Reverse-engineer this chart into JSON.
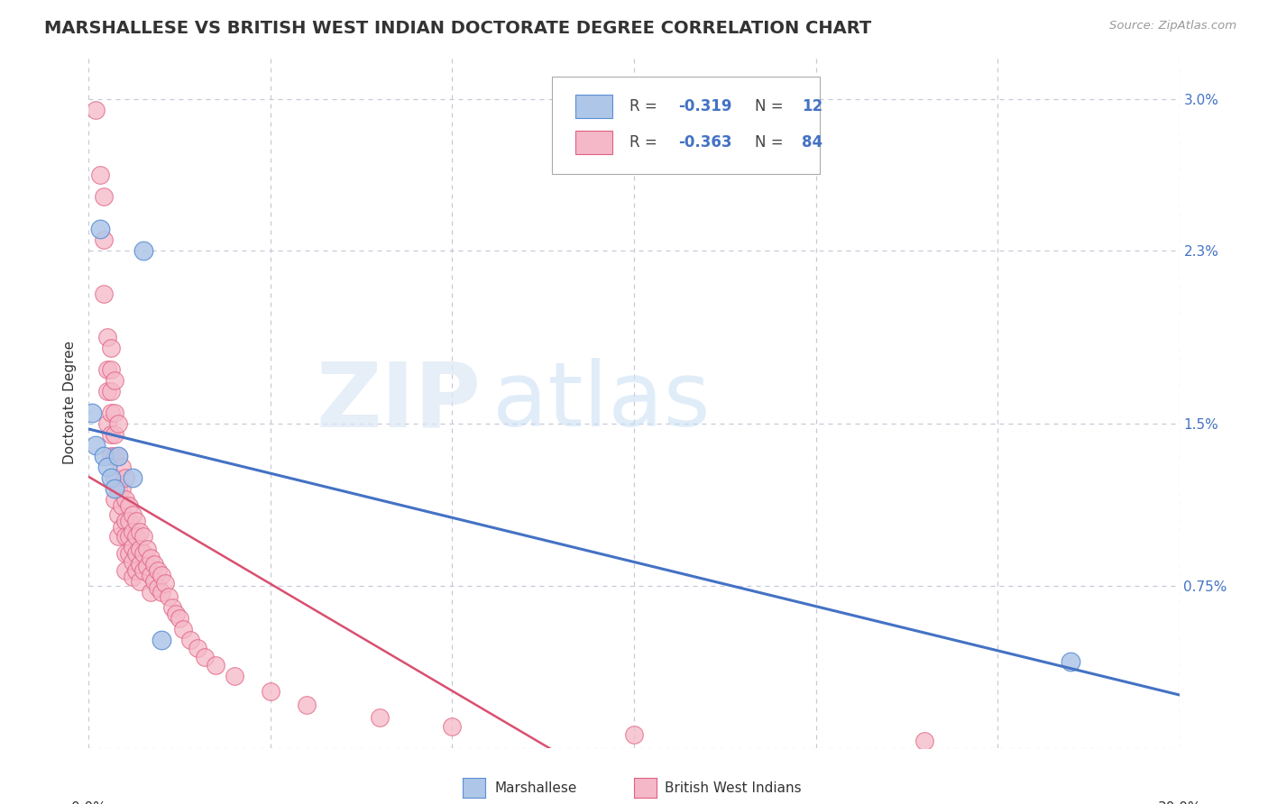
{
  "title": "MARSHALLESE VS BRITISH WEST INDIAN DOCTORATE DEGREE CORRELATION CHART",
  "source": "Source: ZipAtlas.com",
  "ylabel": "Doctorate Degree",
  "blue_color": "#aec6e8",
  "pink_color": "#f5b8c8",
  "blue_edge_color": "#5b8fd4",
  "pink_edge_color": "#e06080",
  "blue_line_color": "#4472c4",
  "pink_line_color": "#d94f70",
  "background_color": "#ffffff",
  "grid_color": "#c8c8d8",
  "watermark_zip": "ZIP",
  "watermark_atlas": "atlas",
  "title_fontsize": 14,
  "axis_label_fontsize": 11,
  "tick_fontsize": 11,
  "legend_fontsize": 12,
  "xlim": [
    0.0,
    0.3
  ],
  "ylim": [
    0.0,
    0.032
  ],
  "ytick_vals": [
    0.0,
    0.0075,
    0.015,
    0.023,
    0.03
  ],
  "ytick_labels": [
    "",
    "0.75%",
    "1.5%",
    "2.3%",
    "3.0%"
  ],
  "xtick_vals": [
    0.0,
    0.05,
    0.1,
    0.15,
    0.2,
    0.25,
    0.3
  ],
  "marshallese_x": [
    0.001,
    0.002,
    0.003,
    0.004,
    0.005,
    0.006,
    0.007,
    0.008,
    0.012,
    0.015,
    0.02,
    0.27
  ],
  "marshallese_y": [
    0.0155,
    0.014,
    0.024,
    0.0135,
    0.013,
    0.0125,
    0.012,
    0.0135,
    0.0125,
    0.023,
    0.005,
    0.004
  ],
  "bwi_x": [
    0.002,
    0.003,
    0.004,
    0.004,
    0.004,
    0.005,
    0.005,
    0.005,
    0.005,
    0.006,
    0.006,
    0.006,
    0.006,
    0.006,
    0.006,
    0.007,
    0.007,
    0.007,
    0.007,
    0.007,
    0.007,
    0.008,
    0.008,
    0.008,
    0.008,
    0.008,
    0.009,
    0.009,
    0.009,
    0.009,
    0.01,
    0.01,
    0.01,
    0.01,
    0.01,
    0.01,
    0.011,
    0.011,
    0.011,
    0.011,
    0.012,
    0.012,
    0.012,
    0.012,
    0.012,
    0.013,
    0.013,
    0.013,
    0.013,
    0.014,
    0.014,
    0.014,
    0.014,
    0.015,
    0.015,
    0.015,
    0.016,
    0.016,
    0.017,
    0.017,
    0.017,
    0.018,
    0.018,
    0.019,
    0.019,
    0.02,
    0.02,
    0.021,
    0.022,
    0.023,
    0.024,
    0.025,
    0.026,
    0.028,
    0.03,
    0.032,
    0.035,
    0.04,
    0.05,
    0.06,
    0.08,
    0.1,
    0.15,
    0.23
  ],
  "bwi_y": [
    0.0295,
    0.0265,
    0.0255,
    0.0235,
    0.021,
    0.019,
    0.0175,
    0.0165,
    0.015,
    0.0185,
    0.0175,
    0.0165,
    0.0155,
    0.0145,
    0.0135,
    0.017,
    0.0155,
    0.0145,
    0.0135,
    0.0125,
    0.0115,
    0.015,
    0.0135,
    0.012,
    0.0108,
    0.0098,
    0.013,
    0.012,
    0.0112,
    0.0102,
    0.0125,
    0.0115,
    0.0105,
    0.0098,
    0.009,
    0.0082,
    0.0112,
    0.0105,
    0.0098,
    0.009,
    0.0108,
    0.01,
    0.0093,
    0.0086,
    0.0079,
    0.0105,
    0.0098,
    0.009,
    0.0082,
    0.01,
    0.0092,
    0.0085,
    0.0077,
    0.0098,
    0.009,
    0.0082,
    0.0092,
    0.0084,
    0.0088,
    0.008,
    0.0072,
    0.0085,
    0.0077,
    0.0082,
    0.0074,
    0.008,
    0.0072,
    0.0076,
    0.007,
    0.0065,
    0.0062,
    0.006,
    0.0055,
    0.005,
    0.0046,
    0.0042,
    0.0038,
    0.0033,
    0.0026,
    0.002,
    0.0014,
    0.001,
    0.0006,
    0.0003
  ]
}
